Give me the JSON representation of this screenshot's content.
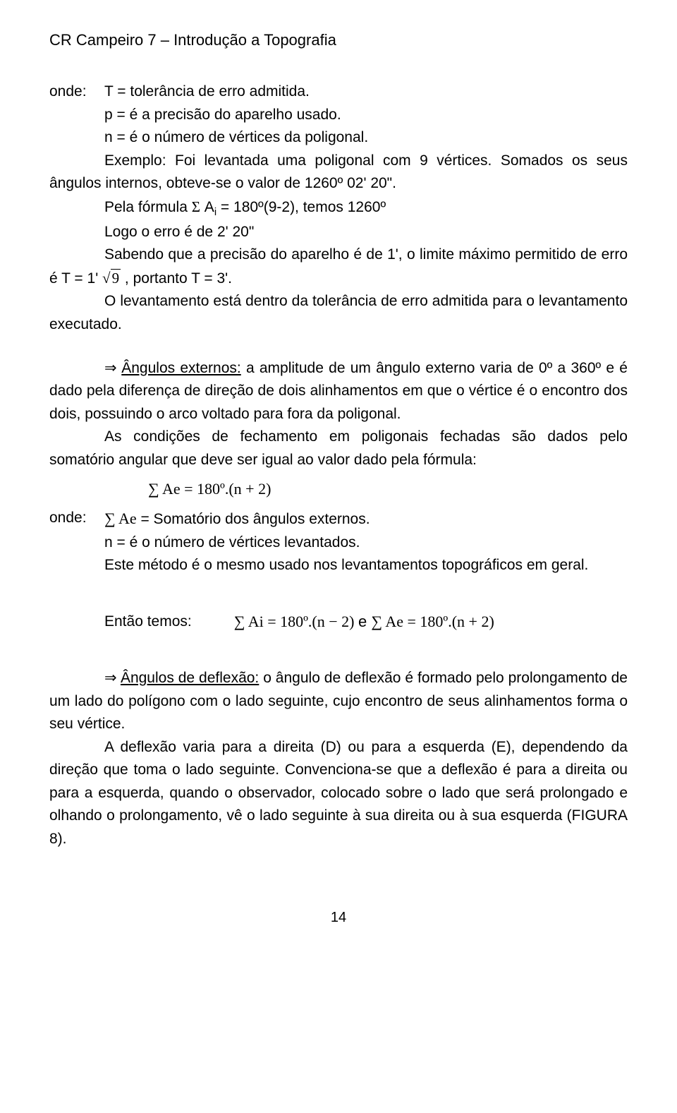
{
  "header": "CR Campeiro 7 – Introdução a Topografia",
  "defs": {
    "onde": "onde:",
    "t": "T = tolerância de erro admitida.",
    "p": "p = é a precisão do aparelho usado.",
    "n": "n = é o número de vértices da poligonal."
  },
  "p1": "Exemplo: Foi levantada uma poligonal com 9 vértices. Somados os seus ângulos internos, obteve-se o valor de 1260º 02' 20\".",
  "p2_a": "Pela fórmula ",
  "p2_sigma": "Σ",
  "p2_b": " A",
  "p2_sub": "i",
  "p2_c": " = 180º(9-2), temos 1260º",
  "p3": "Logo o erro é de 2' 20\"",
  "p4_a": "Sabendo que a precisão do aparelho é de 1', o limite máximo permitido de erro é T = 1' ",
  "p4_sqrt": "9",
  "p4_b": " , portanto T = 3'.",
  "p5": "O levantamento está dentro da tolerância de erro admitida para o levantamento executado.",
  "p6_arrow": "⇒ ",
  "p6_title": "Ângulos externos:",
  "p6_body": " a amplitude de um ângulo externo varia de 0º a 360º e é dado pela diferença de direção de dois alinhamentos em que o vértice é o encontro dos dois, possuindo o arco voltado para fora da poligonal.",
  "p7": "As condições de fechamento em poligonais fechadas são dados pelo somatório angular que deve ser igual ao valor dado pela fórmula:",
  "formula_ae": "∑ Ae = 180º.(n + 2)",
  "onde2_label": "onde:",
  "onde2_a": "∑ Ae",
  "onde2_b": " = Somatório dos ângulos externos.",
  "n2": "n = é o número de vértices levantados.",
  "p8_a": "Este método é o mesmo usado nos levantamentos topográficos em geral.",
  "entao_label": "Então temos:",
  "entao_f1": "∑ Ai = 180º.(n − 2)",
  "entao_e": " e ",
  "entao_f2": "∑ Ae = 180º.(n + 2)",
  "p9_arrow": "⇒ ",
  "p9_title": "Ângulos de deflexão:",
  "p9_body": " o ângulo de deflexão é formado pelo prolongamento de um lado do polígono com o lado seguinte, cujo encontro de seus alinhamentos forma o seu vértice.",
  "p10": "A deflexão varia para a direita (D) ou para a esquerda (E), dependendo da direção que toma o lado seguinte. Convenciona-se que a deflexão é para a direita ou para a esquerda, quando o observador, colocado sobre o lado que será prolongado e olhando o prolongamento, vê o lado seguinte à sua direita ou à sua esquerda (FIGURA 8).",
  "pagenum": "14"
}
